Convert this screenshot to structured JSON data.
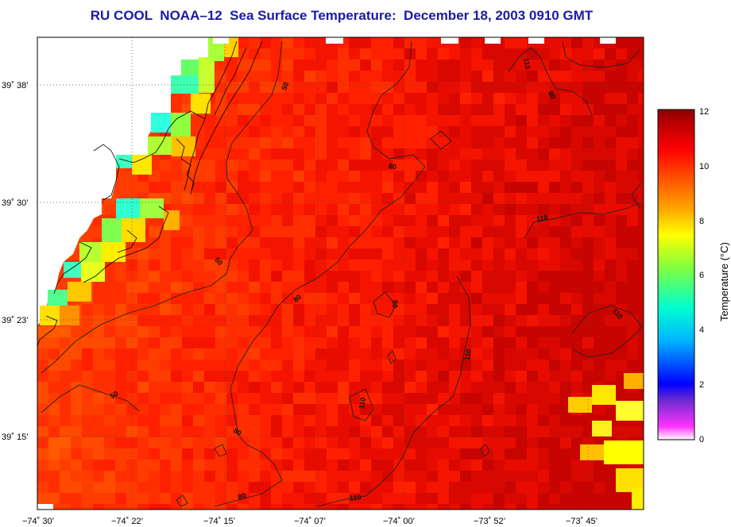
{
  "title": "RU COOL  NOAA–12  Sea Surface Temperature:  December 18, 2003 0910 GMT",
  "colorbar": {
    "label": "Temperature (°C)",
    "ticks": [
      "12",
      "10",
      "8",
      "6",
      "4",
      "2",
      "0"
    ],
    "range": [
      0,
      12
    ],
    "colors": [
      "#ff33ff",
      "#0000ff",
      "#00b4ff",
      "#00ffd0",
      "#7fff3f",
      "#ffff00",
      "#ffa500",
      "#ff5000",
      "#ff0000",
      "#cc0000",
      "#8b0000"
    ]
  },
  "axes": {
    "lat_labels": [
      "39˚ 38’",
      "39˚ 30’",
      "39˚ 23’",
      "39˚ 15’"
    ],
    "lon_labels": [
      "−74˚ 30’",
      "−74˚ 22’",
      "−74˚ 15’",
      "−74˚ 07’",
      "−74˚ 00’",
      "−73˚ 52’",
      "−73˚ 45’"
    ]
  },
  "contour_labels": {
    "c50": "50",
    "c80": "80",
    "c110": "110"
  }
}
